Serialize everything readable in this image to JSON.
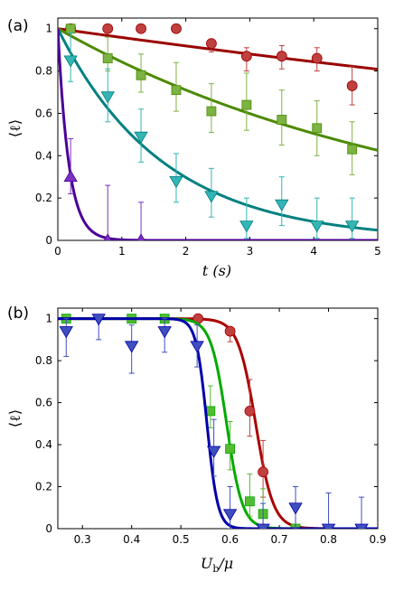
{
  "chart_data": [
    {
      "type": "scatter",
      "panel_label": "(a)",
      "xlabel": "t (s)",
      "ylabel": "⟨ℓ⟩",
      "xlim": [
        0,
        5
      ],
      "ylim": [
        0,
        1.05
      ],
      "xticks": [
        "0",
        "1",
        "2",
        "3",
        "4",
        "5"
      ],
      "yticks": [
        "0",
        "0.2",
        "0.4",
        "0.6",
        "0.8",
        "1"
      ],
      "grid": false,
      "series": [
        {
          "color": "#9a0000",
          "marker_color": "#c0403f",
          "marker": "circle",
          "x": [
            0.2,
            0.78,
            1.3,
            1.85,
            2.4,
            2.95,
            3.5,
            4.05,
            4.6
          ],
          "y": [
            1.0,
            1.0,
            1.0,
            1.0,
            0.93,
            0.87,
            0.87,
            0.86,
            0.73
          ],
          "err_low": [
            0.02,
            0.0,
            0.0,
            0.0,
            0.04,
            0.07,
            0.06,
            0.06,
            0.09
          ],
          "err_high": [
            0.02,
            0.0,
            0.0,
            0.0,
            0.0,
            0.04,
            0.05,
            0.05,
            0.09
          ],
          "fit": {
            "kind": "exp",
            "tau": 23.5
          }
        },
        {
          "color": "#4c8a00",
          "marker_color": "#7cb342",
          "marker": "square",
          "x": [
            0.2,
            0.78,
            1.3,
            1.85,
            2.4,
            2.95,
            3.5,
            4.05,
            4.6
          ],
          "y": [
            1.0,
            0.86,
            0.78,
            0.71,
            0.61,
            0.64,
            0.57,
            0.53,
            0.43
          ],
          "err_low": [
            0.02,
            0.06,
            0.08,
            0.1,
            0.1,
            0.12,
            0.12,
            0.13,
            0.12
          ],
          "err_high": [
            0.02,
            0.1,
            0.1,
            0.13,
            0.13,
            0.15,
            0.14,
            0.13,
            0.13
          ],
          "fit": {
            "kind": "exp",
            "tau": 5.85
          }
        },
        {
          "color": "#008080",
          "marker_color": "#33b5b5",
          "marker": "triangle-down",
          "x": [
            0.2,
            0.78,
            1.3,
            1.85,
            2.4,
            2.95,
            3.5,
            4.05,
            4.6
          ],
          "y": [
            0.85,
            0.68,
            0.49,
            0.28,
            0.21,
            0.07,
            0.17,
            0.07,
            0.07
          ],
          "err_low": [
            0.1,
            0.12,
            0.12,
            0.1,
            0.1,
            0.06,
            0.1,
            0.06,
            0.06
          ],
          "err_high": [
            0.13,
            0.13,
            0.13,
            0.13,
            0.13,
            0.13,
            0.13,
            0.13,
            0.13
          ],
          "fit": {
            "kind": "exp",
            "tau": 1.65
          }
        },
        {
          "color": "#4b0096",
          "marker_color": "#7a30c0",
          "marker": "triangle-up",
          "x": [
            0.2,
            0.78,
            1.3
          ],
          "y": [
            0.3,
            0.0,
            0.0
          ],
          "err_low": [
            0.08,
            0.0,
            0.0
          ],
          "err_high": [
            0.18,
            0.26,
            0.18
          ],
          "fit": {
            "kind": "exp",
            "tau": 0.17
          }
        }
      ]
    },
    {
      "type": "scatter",
      "panel_label": "(b)",
      "xlabel": "U_b/μ",
      "ylabel": "⟨ℓ⟩",
      "xlim": [
        0.25,
        0.9
      ],
      "ylim": [
        0,
        1.05
      ],
      "xticks": [
        "0.3",
        "0.4",
        "0.5",
        "0.6",
        "0.7",
        "0.8",
        "0.9"
      ],
      "yticks": [
        "0",
        "0.2",
        "0.4",
        "0.6",
        "0.8",
        "1"
      ],
      "grid": false,
      "series": [
        {
          "color": "#aa0000",
          "marker_color": "#c0403f",
          "marker": "circle",
          "x": [
            0.535,
            0.6,
            0.64,
            0.667
          ],
          "y": [
            1.0,
            0.94,
            0.56,
            0.27
          ],
          "err_low": [
            0.0,
            0.05,
            0.12,
            0.12
          ],
          "err_high": [
            0.0,
            0.0,
            0.15,
            0.15
          ],
          "fit": {
            "kind": "sigmoid",
            "x0": 0.652,
            "w": 0.018
          }
        },
        {
          "color": "#00aa00",
          "marker_color": "#55bb33",
          "marker": "square",
          "x": [
            0.267,
            0.4,
            0.467,
            0.56,
            0.6,
            0.64,
            0.667,
            0.733
          ],
          "y": [
            1.0,
            1.0,
            1.0,
            0.56,
            0.38,
            0.13,
            0.07,
            0.0
          ],
          "err_low": [
            0.0,
            0.0,
            0.0,
            0.08,
            0.1,
            0.07,
            0.05,
            0.0
          ],
          "err_high": [
            0.0,
            0.0,
            0.0,
            0.12,
            0.13,
            0.13,
            0.12,
            0.0
          ],
          "fit": {
            "kind": "sigmoid",
            "x0": 0.593,
            "w": 0.016
          }
        },
        {
          "color": "#0000aa",
          "marker_color": "#3f4fbf",
          "marker": "triangle-down",
          "x": [
            0.267,
            0.333,
            0.4,
            0.467,
            0.533,
            0.567,
            0.6,
            0.667,
            0.733,
            0.8,
            0.867
          ],
          "y": [
            0.94,
            1.0,
            0.87,
            0.94,
            0.87,
            0.37,
            0.07,
            0.0,
            0.1,
            0.0,
            0.0
          ],
          "err_low": [
            0.12,
            0.1,
            0.13,
            0.1,
            0.1,
            0.12,
            0.07,
            0.0,
            0.1,
            0.0,
            0.0
          ],
          "err_high": [
            0.06,
            0.0,
            0.1,
            0.06,
            0.1,
            0.15,
            0.13,
            0.12,
            0.1,
            0.17,
            0.15
          ],
          "fit": {
            "kind": "sigmoid",
            "x0": 0.553,
            "w": 0.011
          }
        }
      ]
    }
  ]
}
